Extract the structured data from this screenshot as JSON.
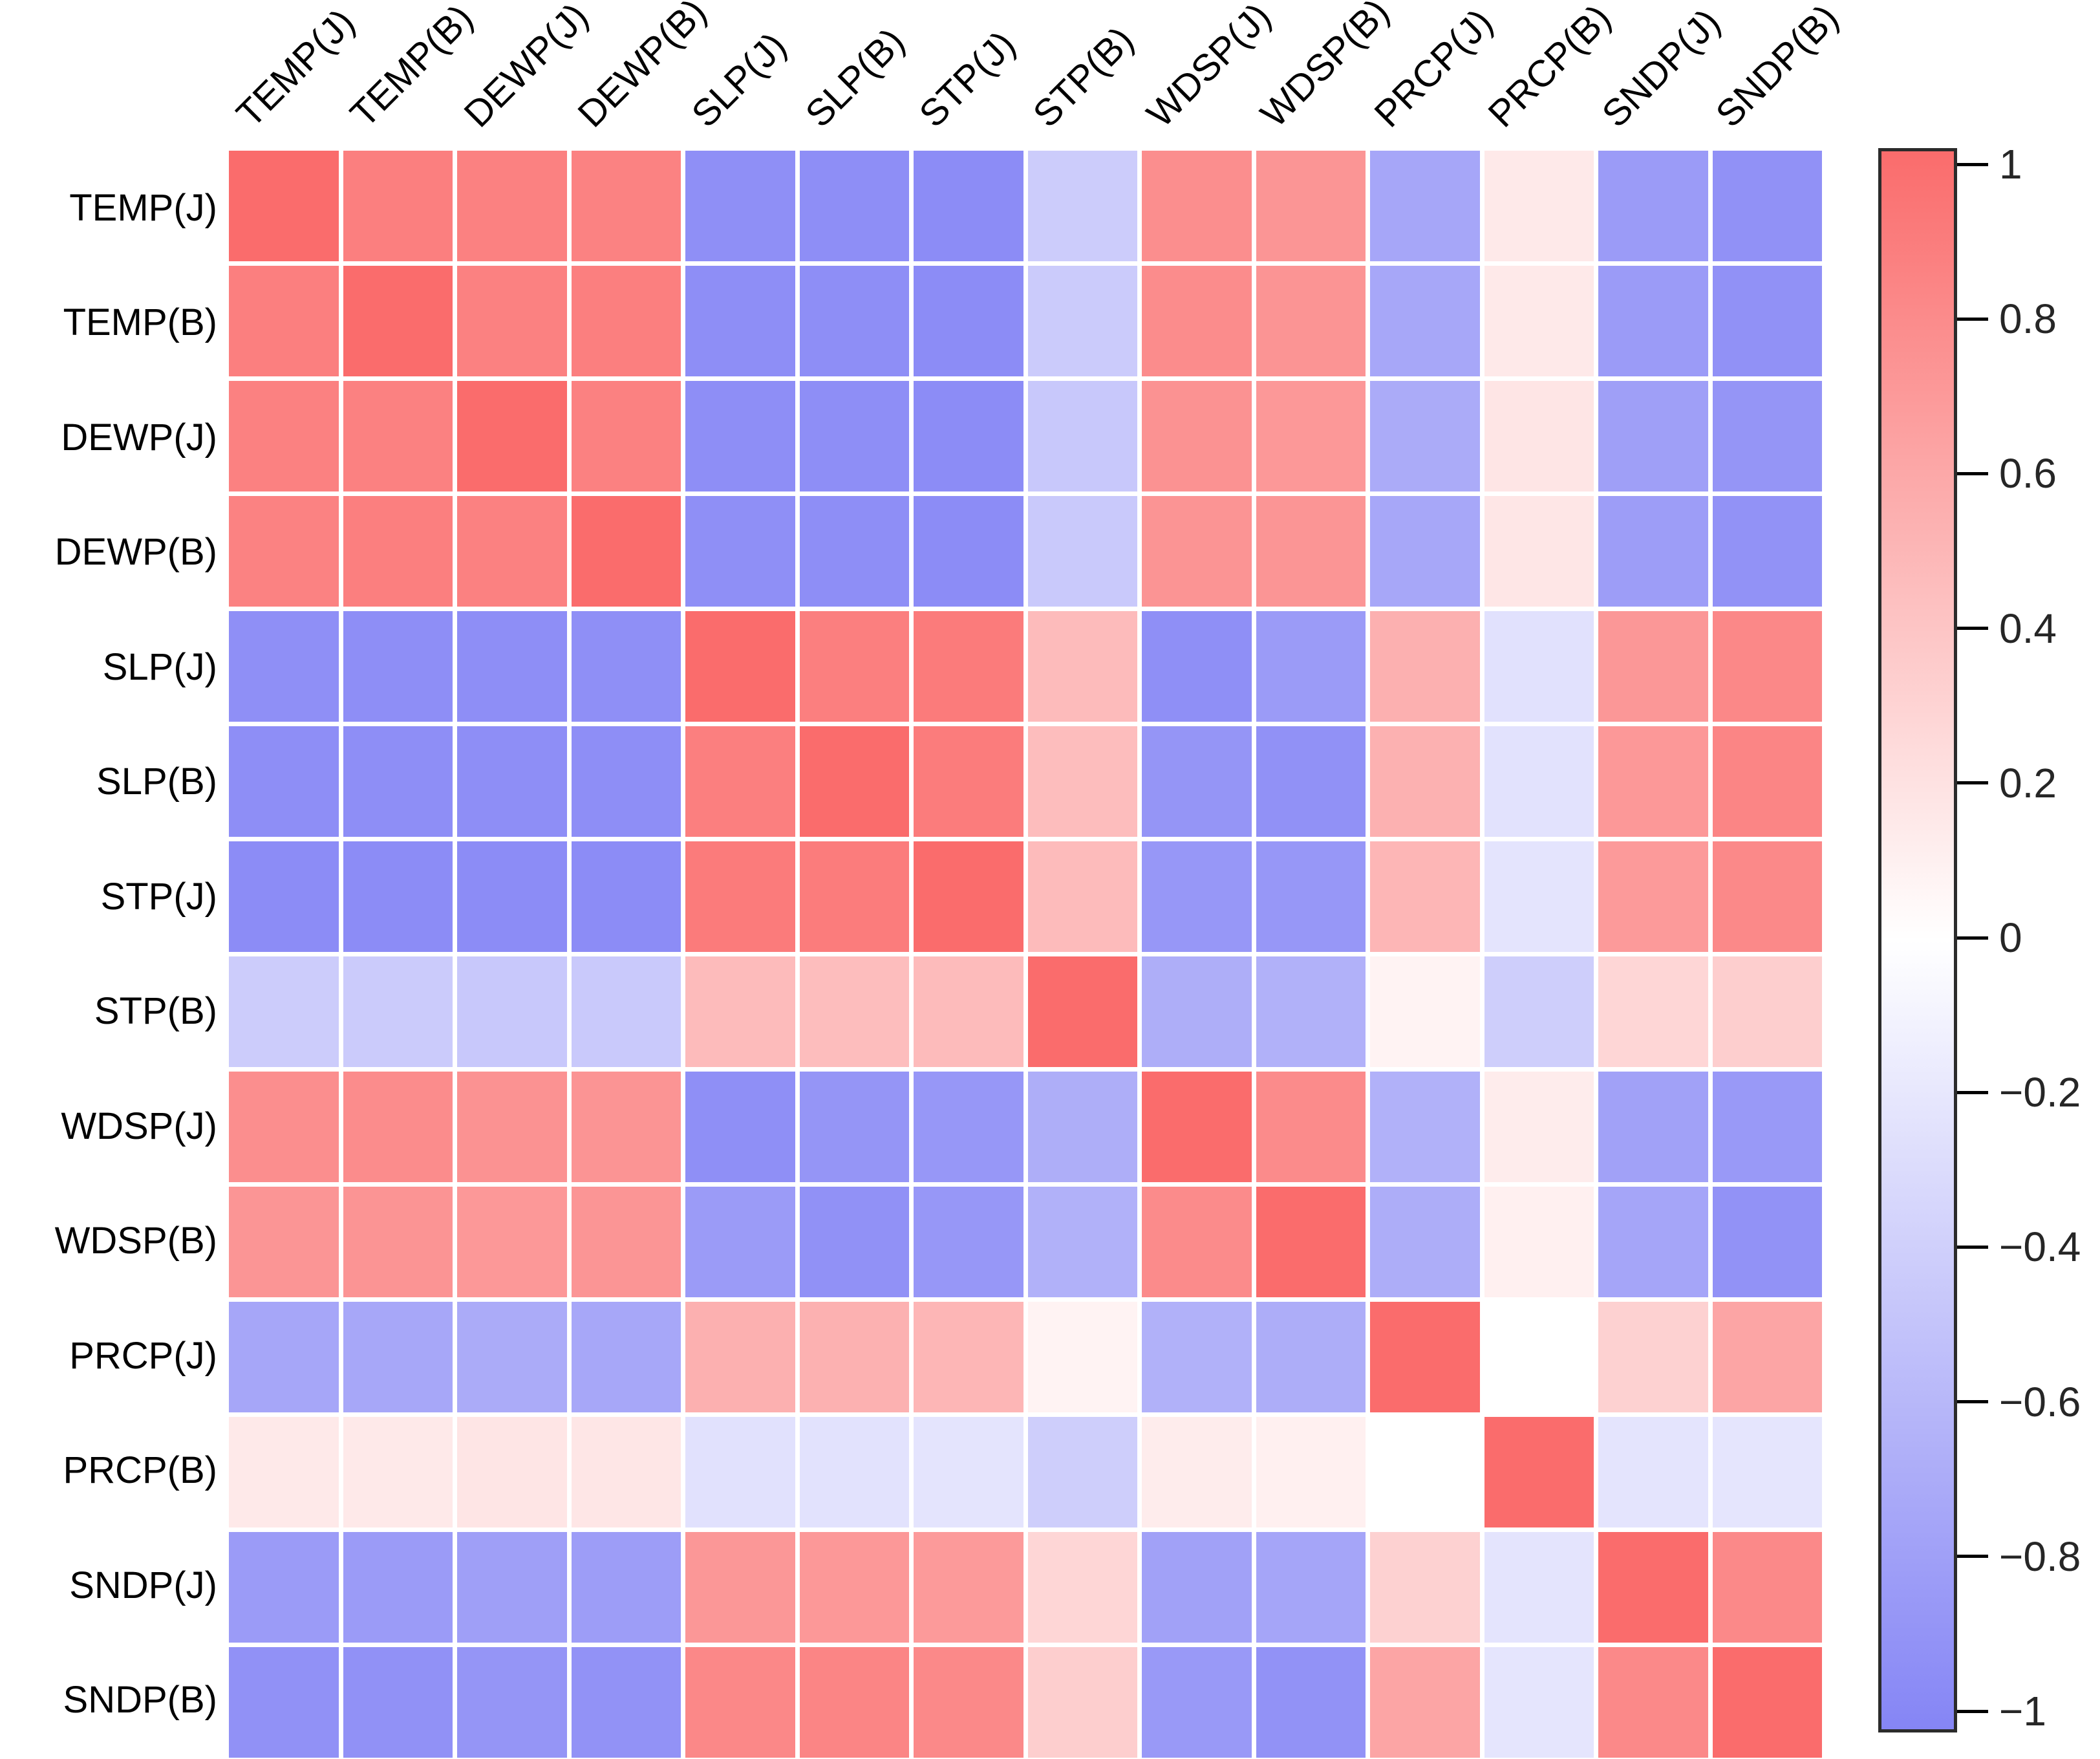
{
  "chart_data": {
    "type": "heatmap",
    "title": "",
    "variables": [
      "TEMP(J)",
      "TEMP(B)",
      "DEWP(J)",
      "DEWP(B)",
      "SLP(J)",
      "SLP(B)",
      "STP(J)",
      "STP(B)",
      "WDSP(J)",
      "WDSP(B)",
      "PRCP(J)",
      "PRCP(B)",
      "SNDP(J)",
      "SNDP(B)"
    ],
    "matrix": [
      [
        1.0,
        0.87,
        0.86,
        0.85,
        -0.92,
        -0.93,
        -0.94,
        -0.42,
        0.77,
        0.72,
        -0.73,
        0.15,
        -0.82,
        -0.9
      ],
      [
        0.87,
        1.0,
        0.86,
        0.87,
        -0.93,
        -0.93,
        -0.94,
        -0.43,
        0.78,
        0.73,
        -0.72,
        0.15,
        -0.82,
        -0.9
      ],
      [
        0.86,
        0.86,
        1.0,
        0.86,
        -0.93,
        -0.93,
        -0.94,
        -0.45,
        0.74,
        0.7,
        -0.69,
        0.18,
        -0.79,
        -0.87
      ],
      [
        0.85,
        0.87,
        0.86,
        1.0,
        -0.92,
        -0.93,
        -0.94,
        -0.44,
        0.73,
        0.72,
        -0.72,
        0.17,
        -0.8,
        -0.89
      ],
      [
        -0.92,
        -0.93,
        -0.93,
        -0.92,
        1.0,
        0.87,
        0.9,
        0.46,
        -0.92,
        -0.82,
        0.54,
        -0.25,
        0.71,
        0.81
      ],
      [
        -0.93,
        -0.93,
        -0.93,
        -0.93,
        0.87,
        1.0,
        0.89,
        0.45,
        -0.87,
        -0.9,
        0.53,
        -0.24,
        0.7,
        0.83
      ],
      [
        -0.94,
        -0.94,
        -0.94,
        -0.94,
        0.9,
        0.89,
        1.0,
        0.46,
        -0.85,
        -0.85,
        0.5,
        -0.22,
        0.69,
        0.8
      ],
      [
        -0.42,
        -0.43,
        -0.45,
        -0.44,
        0.46,
        0.45,
        0.46,
        1.0,
        -0.66,
        -0.64,
        0.08,
        -0.4,
        0.28,
        0.33
      ],
      [
        0.77,
        0.78,
        0.74,
        0.73,
        -0.92,
        -0.87,
        -0.85,
        -0.66,
        1.0,
        0.79,
        -0.64,
        0.13,
        -0.77,
        -0.84
      ],
      [
        0.72,
        0.73,
        0.7,
        0.72,
        -0.82,
        -0.9,
        -0.85,
        -0.64,
        0.79,
        1.0,
        -0.67,
        0.1,
        -0.74,
        -0.89
      ],
      [
        -0.73,
        -0.72,
        -0.69,
        -0.72,
        0.54,
        0.53,
        0.5,
        0.08,
        -0.64,
        -0.67,
        1.0,
        0.0,
        0.31,
        0.61
      ],
      [
        0.15,
        0.15,
        0.18,
        0.17,
        -0.25,
        -0.24,
        -0.22,
        -0.4,
        0.13,
        0.1,
        0.0,
        1.0,
        -0.22,
        -0.21
      ],
      [
        -0.82,
        -0.82,
        -0.79,
        -0.8,
        0.71,
        0.7,
        0.69,
        0.28,
        -0.77,
        -0.74,
        0.31,
        -0.22,
        1.0,
        0.8
      ],
      [
        -0.9,
        -0.9,
        -0.87,
        -0.89,
        0.81,
        0.83,
        0.8,
        0.33,
        -0.84,
        -0.89,
        0.61,
        -0.21,
        0.8,
        1.0
      ]
    ],
    "value_range": [
      -1,
      1
    ],
    "colorbar": {
      "tick_labels": [
        "1",
        "0.8",
        "0.6",
        "0.4",
        "0.2",
        "0",
        "−0.2",
        "−0.4",
        "−0.6",
        "−0.8",
        "−1"
      ],
      "tick_values": [
        1,
        0.8,
        0.6,
        0.4,
        0.2,
        0,
        -0.2,
        -0.4,
        -0.6,
        -0.8,
        -1
      ],
      "max_color": "#FA6C6C",
      "zero_color": "#FFFFFF",
      "min_color": "#8585F5"
    },
    "layout": {
      "legend_position": "right",
      "grid": "off",
      "cell_gap_color": "#FFFFFF"
    }
  }
}
